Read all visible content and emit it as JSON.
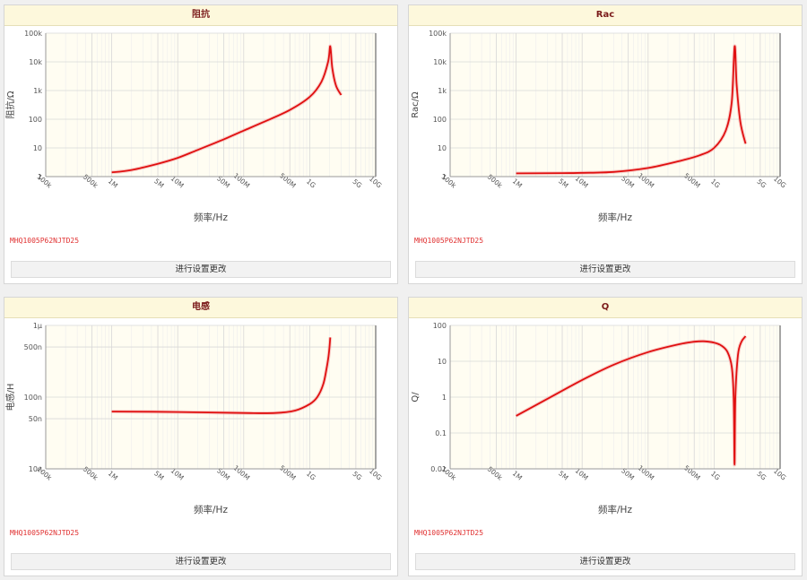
{
  "colors": {
    "curve": "#e01010",
    "plot_bg": "#fffdf2",
    "grid": "#d8d8d8",
    "title_text": "#7a1a1a",
    "part_text": "#e03030"
  },
  "x_ticks": [
    {
      "v": 100000,
      "label": "100k"
    },
    {
      "v": 500000,
      "label": "500k"
    },
    {
      "v": 1000000,
      "label": "1M"
    },
    {
      "v": 5000000,
      "label": "5M"
    },
    {
      "v": 10000000,
      "label": "10M"
    },
    {
      "v": 50000000,
      "label": "50M"
    },
    {
      "v": 100000000,
      "label": "100M"
    },
    {
      "v": 500000000,
      "label": "500M"
    },
    {
      "v": 1000000000,
      "label": "1G"
    },
    {
      "v": 5000000000,
      "label": "5G"
    },
    {
      "v": 10000000000,
      "label": "10G"
    }
  ],
  "panels": [
    {
      "title": "阻抗",
      "part_number": "MHQ1005P62NJTD25",
      "button_label": "进行设置更改",
      "chart_data": {
        "type": "line",
        "xlabel": "频率/Hz",
        "ylabel": "阻抗/Ω",
        "xscale": "log",
        "yscale": "log",
        "xlim": [
          100000,
          10000000000
        ],
        "ylim": [
          1,
          100000
        ],
        "y_ticks": [
          {
            "v": 1,
            "label": "1"
          },
          {
            "v": 10,
            "label": "10"
          },
          {
            "v": 100,
            "label": "100"
          },
          {
            "v": 1000,
            "label": "1k"
          },
          {
            "v": 10000,
            "label": "10k"
          },
          {
            "v": 100000,
            "label": "100k"
          }
        ],
        "x": [
          1000000,
          2000000,
          5000000,
          10000000,
          20000000,
          50000000,
          100000000,
          200000000,
          500000000,
          1000000000,
          1500000000,
          1900000000,
          2050000000,
          2200000000,
          2500000000,
          3000000000
        ],
        "y": [
          1.4,
          1.7,
          2.8,
          4.5,
          8.5,
          20,
          40,
          80,
          210,
          600,
          2000,
          10000,
          35000,
          6000,
          1500,
          700
        ]
      }
    },
    {
      "title": "Rac",
      "part_number": "MHQ1005P62NJTD25",
      "button_label": "进行设置更改",
      "chart_data": {
        "type": "line",
        "xlabel": "频率/Hz",
        "ylabel": "Rac/Ω",
        "xscale": "log",
        "yscale": "log",
        "xlim": [
          100000,
          10000000000
        ],
        "ylim": [
          1,
          100000
        ],
        "y_ticks": [
          {
            "v": 1,
            "label": "1"
          },
          {
            "v": 10,
            "label": "10"
          },
          {
            "v": 100,
            "label": "100"
          },
          {
            "v": 1000,
            "label": "1k"
          },
          {
            "v": 10000,
            "label": "10k"
          },
          {
            "v": 100000,
            "label": "100k"
          }
        ],
        "x": [
          1000000,
          5000000,
          10000000,
          30000000,
          100000000,
          300000000,
          600000000,
          1000000000,
          1500000000,
          1850000000,
          2050000000,
          2200000000,
          2500000000,
          3000000000
        ],
        "y": [
          1.3,
          1.32,
          1.35,
          1.45,
          2.0,
          3.5,
          5.5,
          10,
          40,
          400,
          35000,
          1500,
          80,
          14
        ]
      }
    },
    {
      "title": "电感",
      "part_number": "MHQ1005P62NJTD25",
      "button_label": "进行设置更改",
      "chart_data": {
        "type": "line",
        "xlabel": "频率/Hz",
        "ylabel": "电感/H",
        "xscale": "log",
        "yscale": "log",
        "xlim": [
          100000,
          10000000000
        ],
        "ylim": [
          1e-08,
          1e-06
        ],
        "y_ticks": [
          {
            "v": 1e-08,
            "label": "10n"
          },
          {
            "v": 5e-08,
            "label": "50n"
          },
          {
            "v": 1e-07,
            "label": "100n"
          },
          {
            "v": 5e-07,
            "label": "500n"
          },
          {
            "v": 1e-06,
            "label": "1μ"
          }
        ],
        "x": [
          1000000,
          10000000,
          100000000,
          300000000,
          600000000,
          1000000000,
          1300000000,
          1600000000,
          1800000000,
          1950000000,
          2050000000
        ],
        "y": [
          6.3e-08,
          6.2e-08,
          6e-08,
          6e-08,
          6.5e-08,
          8e-08,
          1e-07,
          1.5e-07,
          2.5e-07,
          4e-07,
          6.8e-07
        ]
      }
    },
    {
      "title": "Q",
      "part_number": "MHQ1005P62NJTD25",
      "button_label": "进行设置更改",
      "chart_data": {
        "type": "line",
        "xlabel": "频率/Hz",
        "ylabel": "Q/",
        "xscale": "log",
        "yscale": "log",
        "xlim": [
          100000,
          10000000000
        ],
        "ylim": [
          0.01,
          100
        ],
        "y_ticks": [
          {
            "v": 0.01,
            "label": "0.01"
          },
          {
            "v": 0.1,
            "label": "0.1"
          },
          {
            "v": 1,
            "label": "1"
          },
          {
            "v": 10,
            "label": "10"
          },
          {
            "v": 100,
            "label": "100"
          }
        ],
        "x": [
          1000000,
          3000000,
          10000000,
          30000000,
          100000000,
          300000000,
          500000000,
          700000000,
          1000000000,
          1300000000,
          1600000000,
          1850000000,
          1980000000,
          2040000000,
          2100000000,
          2300000000,
          2600000000,
          3000000000
        ],
        "y": [
          0.3,
          0.9,
          3,
          8,
          18,
          30,
          35,
          36,
          33,
          27,
          18,
          7,
          1,
          0.013,
          1,
          15,
          35,
          50
        ]
      }
    }
  ]
}
